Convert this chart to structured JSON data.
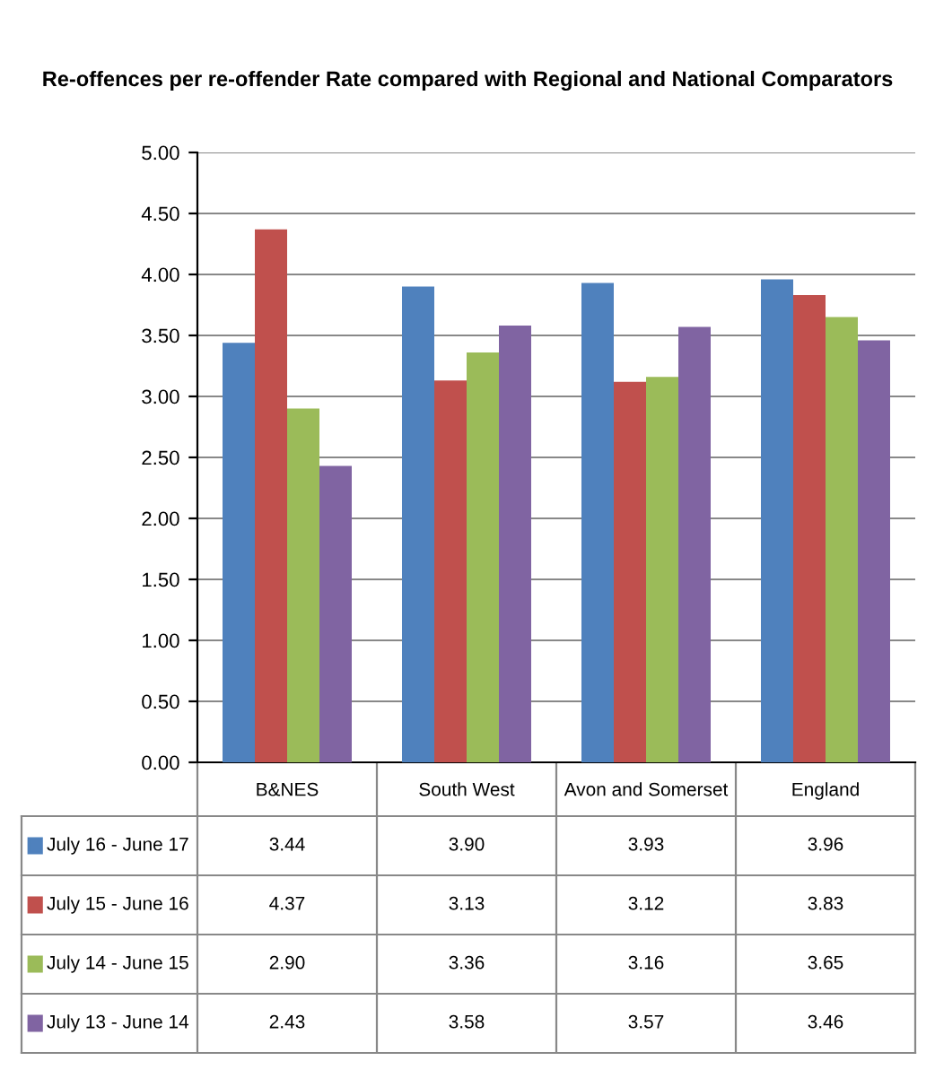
{
  "chart_data": {
    "type": "bar",
    "title": "Re-offences per re-offender Rate compared with Regional and National Comparators",
    "categories": [
      "B&NES",
      "South West",
      "Avon and Somerset",
      "England"
    ],
    "series": [
      {
        "name": "July 16 - June 17",
        "color": "#4f81bd",
        "values": [
          3.44,
          3.9,
          3.93,
          3.96
        ],
        "value_labels": [
          "3.44",
          "3.90",
          "3.93",
          "3.96"
        ]
      },
      {
        "name": "July 15 - June 16",
        "color": "#c0504d",
        "values": [
          4.37,
          3.13,
          3.12,
          3.83
        ],
        "value_labels": [
          "4.37",
          "3.13",
          "3.12",
          "3.83"
        ]
      },
      {
        "name": "July 14 - June 15",
        "color": "#9bbb59",
        "values": [
          2.9,
          3.36,
          3.16,
          3.65
        ],
        "value_labels": [
          "2.90",
          "3.36",
          "3.16",
          "3.65"
        ]
      },
      {
        "name": "July 13 - June 14",
        "color": "#8064a2",
        "values": [
          2.43,
          3.58,
          3.57,
          3.46
        ],
        "value_labels": [
          "2.43",
          "3.58",
          "3.57",
          "3.46"
        ]
      }
    ],
    "ylim": [
      0,
      5
    ],
    "yticks": [
      {
        "value": 0,
        "label": "0.00"
      },
      {
        "value": 0.5,
        "label": "0.50"
      },
      {
        "value": 1,
        "label": "1.00"
      },
      {
        "value": 1.5,
        "label": "1.50"
      },
      {
        "value": 2,
        "label": "2.00"
      },
      {
        "value": 2.5,
        "label": "2.50"
      },
      {
        "value": 3,
        "label": "3.00"
      },
      {
        "value": 3.5,
        "label": "3.50"
      },
      {
        "value": 4,
        "label": "4.00"
      },
      {
        "value": 4.5,
        "label": "4.50"
      },
      {
        "value": 5,
        "label": "5.00"
      }
    ],
    "grid": "y",
    "legend": "bottom"
  }
}
